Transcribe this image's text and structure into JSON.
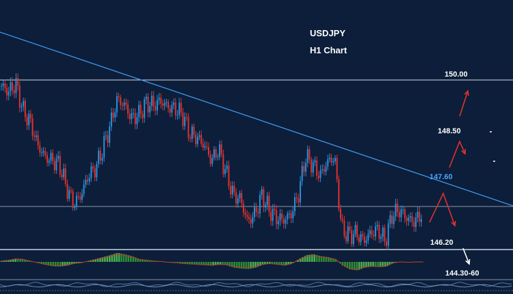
{
  "chart_data": {
    "type": "candlestick",
    "title": "USDJPY",
    "subtitle": "H1 Chart",
    "levels": [
      {
        "name": "resistance",
        "value": "150.00"
      },
      {
        "name": "target_up",
        "value": "148.50"
      },
      {
        "name": "trendline",
        "value": "147.60"
      },
      {
        "name": "support",
        "value": "146.20"
      },
      {
        "name": "target_down",
        "value": "144.30-60"
      }
    ],
    "price_path": [
      149.85,
      149.7,
      149.9,
      149.2,
      148.9,
      148.3,
      148.0,
      147.9,
      147.8,
      147.2,
      146.75,
      147.0,
      147.5,
      147.7,
      148.2,
      148.8,
      149.5,
      149.35,
      149.0,
      149.1,
      149.4,
      149.35,
      149.45,
      149.3,
      149.25,
      149.1,
      148.6,
      148.5,
      148.3,
      147.9,
      148.2,
      147.6,
      147.0,
      146.9,
      146.3,
      146.5,
      147.0,
      146.6,
      146.4,
      146.35,
      146.5,
      147.0,
      148.0,
      147.8,
      147.5,
      147.85,
      148.0,
      146.1,
      145.95,
      146.0,
      145.8,
      146.0,
      146.1,
      145.8,
      146.5,
      146.6,
      146.4,
      146.3,
      146.5
    ],
    "oscillator": [
      0.1,
      0.2,
      0.35,
      0.3,
      0.1,
      -0.1,
      -0.3,
      -0.45,
      -0.5,
      -0.4,
      -0.2,
      -0.1,
      0.1,
      0.3,
      0.5,
      0.7,
      0.95,
      0.8,
      0.6,
      0.3,
      0.2,
      0.1,
      0.05,
      -0.05,
      -0.1,
      -0.2,
      -0.25,
      -0.3,
      -0.35,
      -0.4,
      -0.3,
      -0.35,
      -0.6,
      -0.7,
      -0.75,
      -0.6,
      -0.3,
      -0.2,
      -0.3,
      -0.4,
      -0.2,
      0.3,
      0.7,
      0.8,
      0.6,
      0.5,
      0.3,
      -0.4,
      -0.8,
      -0.9,
      -0.6,
      -0.5,
      -0.55,
      -0.5,
      -0.1,
      0.0,
      -0.05,
      0.0,
      0.0
    ],
    "colors": {
      "background": "#0c1e3a",
      "bull": "#2c8fd8",
      "bear": "#e0322c",
      "trendline": "#3e98ec",
      "level_line": "#d7dde8",
      "projection_red": "#e0322c",
      "projection_white": "#ffffff",
      "oscillator_pos": "#4caf4f",
      "oscillator_neg": "#2f8a35",
      "label_trend": "#4aa3ff",
      "label_default": "#ffffff"
    }
  }
}
